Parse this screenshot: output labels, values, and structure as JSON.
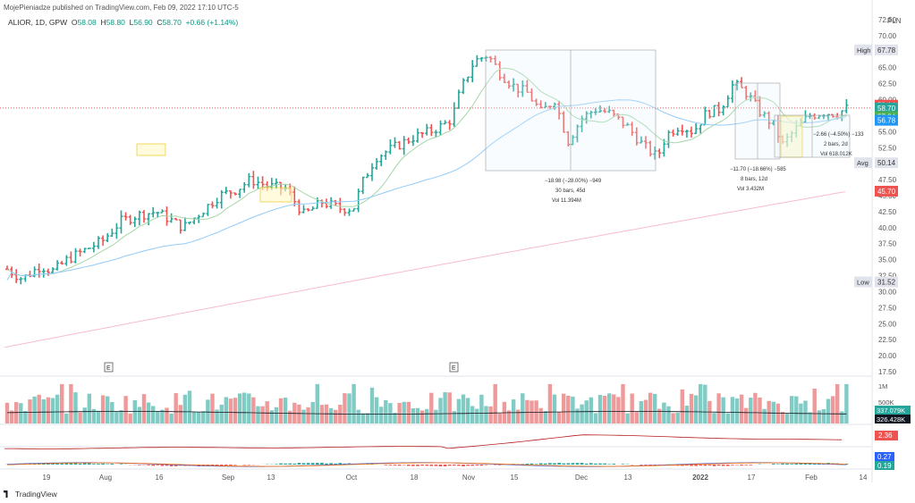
{
  "header": {
    "published_by": "MojePieniadze published on TradingView.com, Feb 09, 2022 17:10 UTC-5"
  },
  "symbol": {
    "name": "ALIOR, 1D, GPW",
    "open_label": "O",
    "open": "58.08",
    "high_label": "H",
    "high": "58.80",
    "low_label": "L",
    "low": "56.90",
    "close_label": "C",
    "close": "58.70",
    "change": "+0.66 (+1.14%)"
  },
  "footer": {
    "brand": "TradingView"
  },
  "colors": {
    "up": "#26a69a",
    "down": "#ef5350",
    "ma_fast": "#a5d6a7",
    "ma_mid": "#90caf9",
    "ma_slow": "#f8bbd0"
  },
  "chart_data": {
    "type": "ohlc-bar",
    "currency": "PLN",
    "x_ticks": [
      "19",
      "Aug",
      "16",
      "Sep",
      "13",
      "Oct",
      "18",
      "Nov",
      "15",
      "Dec",
      "13",
      "2022",
      "17",
      "Feb",
      "14"
    ],
    "y_ticks": [
      "72.50",
      "70.00",
      "67.50",
      "65.00",
      "62.50",
      "60.00",
      "57.50",
      "55.00",
      "52.50",
      "50.00",
      "47.50",
      "45.00",
      "42.50",
      "40.00",
      "37.50",
      "35.00",
      "32.50",
      "30.00",
      "27.50",
      "25.00",
      "22.50",
      "20.00",
      "17.50"
    ],
    "ylim": [
      17.5,
      72.5
    ],
    "price_labels": [
      {
        "text": "High",
        "value": "67.78",
        "kind": "gray"
      },
      {
        "text": "",
        "value": "59.14",
        "kind": "red"
      },
      {
        "text": "",
        "value": "58.70",
        "kind": "teal"
      },
      {
        "text": "",
        "value": "57.34",
        "kind": "green"
      },
      {
        "text": "",
        "value": "56.78",
        "kind": "blue"
      },
      {
        "text": "Avg",
        "value": "50.14",
        "kind": "gray"
      },
      {
        "text": "",
        "value": "45.70",
        "kind": "red"
      },
      {
        "text": "Low",
        "value": "31.52",
        "kind": "gray"
      }
    ],
    "measurements": [
      {
        "line1": "−18.98 (−28.00%) −949",
        "line2": "30 bars, 45d",
        "line3": "Vol 11.394M"
      },
      {
        "line1": "−11.70 (−18.66%) −585",
        "line2": "8 bars, 12d",
        "line3": "Vol 3.432M"
      },
      {
        "line1": "−2.66 (−4.50%) −133",
        "line2": "2 bars, 2d",
        "line3": "Vol 618.012K"
      }
    ],
    "events": [
      "E",
      "E"
    ],
    "volume": {
      "axis_label": "1M",
      "axis_label2": "500K",
      "values_labels": [
        "337.079K",
        "326.428K"
      ]
    },
    "indicator1": {
      "label": "2.36"
    },
    "indicator2": {
      "labels": [
        "0.27",
        "0.19"
      ]
    }
  }
}
